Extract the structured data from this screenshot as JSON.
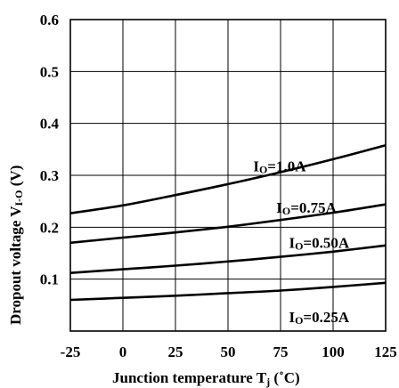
{
  "chart_data": {
    "type": "line",
    "xlabel": "Junction temperature",
    "xlabel_symbol": "T",
    "xlabel_sub": "j",
    "xlabel_unit": "(˚C)",
    "ylabel": "Dropout voltage",
    "ylabel_symbol": "V",
    "ylabel_sub": "I-O",
    "ylabel_unit": "(V)",
    "xlim": [
      -25,
      125
    ],
    "ylim": [
      0,
      0.6
    ],
    "x_ticks": [
      -25,
      0,
      25,
      50,
      75,
      100,
      125
    ],
    "y_ticks": [
      0.1,
      0.2,
      0.3,
      0.4,
      0.5,
      0.6
    ],
    "x_tick_labels": [
      "-25",
      "0",
      "25",
      "50",
      "75",
      "100",
      "125"
    ],
    "y_tick_labels": [
      "0.1",
      "0.2",
      "0.3",
      "0.4",
      "0.5",
      "0.6"
    ],
    "grid": true,
    "series": [
      {
        "name": "IO=1.0A",
        "label_main": "I",
        "label_sub": "O",
        "label_rest": "=1.0A",
        "x": [
          -25,
          0,
          25,
          50,
          75,
          100,
          125
        ],
        "y": [
          0.227,
          0.242,
          0.262,
          0.283,
          0.306,
          0.331,
          0.358
        ]
      },
      {
        "name": "IO=0.75A",
        "label_main": "I",
        "label_sub": "O",
        "label_rest": "=0.75A",
        "x": [
          -25,
          0,
          25,
          50,
          75,
          100,
          125
        ],
        "y": [
          0.17,
          0.18,
          0.19,
          0.201,
          0.214,
          0.228,
          0.244
        ]
      },
      {
        "name": "IO=0.50A",
        "label_main": "I",
        "label_sub": "O",
        "label_rest": "=0.50A",
        "x": [
          -25,
          0,
          25,
          50,
          75,
          100,
          125
        ],
        "y": [
          0.112,
          0.119,
          0.126,
          0.134,
          0.143,
          0.153,
          0.165
        ]
      },
      {
        "name": "IO=0.25A",
        "label_main": "I",
        "label_sub": "O",
        "label_rest": "=0.25A",
        "x": [
          -25,
          0,
          25,
          50,
          75,
          100,
          125
        ],
        "y": [
          0.06,
          0.064,
          0.068,
          0.073,
          0.078,
          0.085,
          0.093
        ]
      }
    ]
  }
}
